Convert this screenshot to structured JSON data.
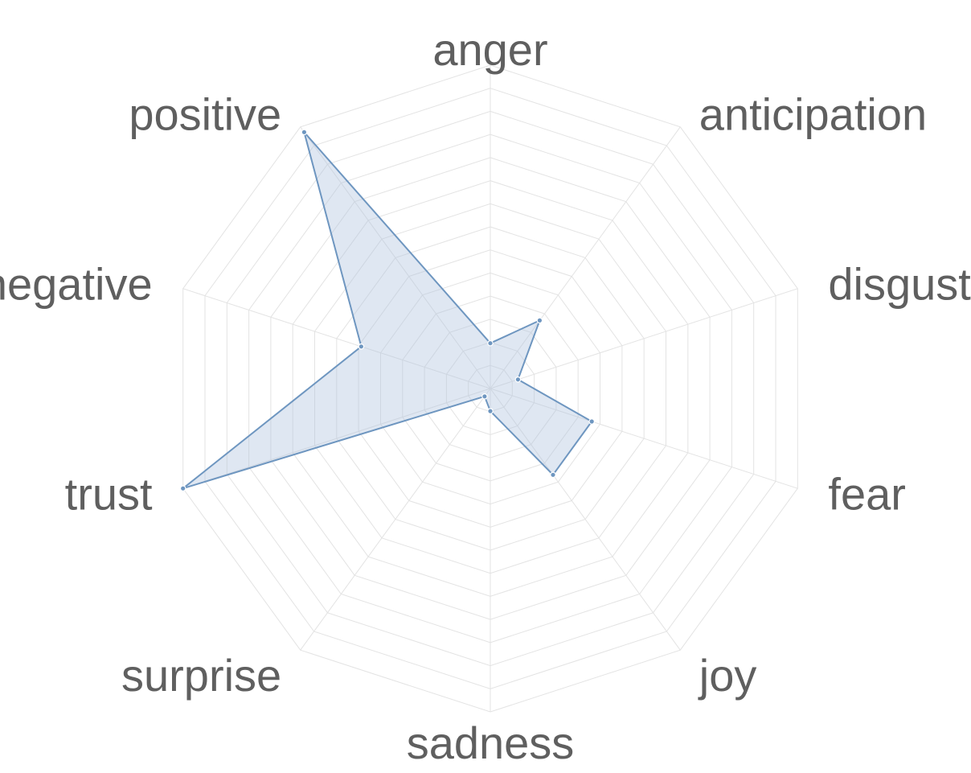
{
  "chart_data": {
    "type": "radar",
    "axes": [
      "anger",
      "anticipation",
      "disgust",
      "fear",
      "joy",
      "sadness",
      "surprise",
      "trust",
      "negative",
      "positive"
    ],
    "series": [
      {
        "values": [
          0.14,
          0.26,
          0.09,
          0.33,
          0.33,
          0.07,
          0.03,
          1.0,
          0.42,
          0.98
        ]
      }
    ],
    "rlim": [
      0,
      1
    ],
    "rings": 14,
    "grid": true,
    "colors": {
      "line": "#6e96c0",
      "fill": "#b0c4de",
      "grid": "#e3e3e3",
      "label": "#5f5f5f"
    }
  }
}
